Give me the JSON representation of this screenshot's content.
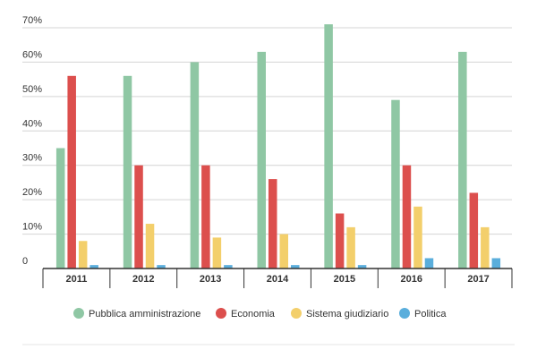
{
  "chart_data": {
    "type": "bar",
    "title": "",
    "xlabel": "",
    "ylabel": "",
    "categories": [
      "2011",
      "2012",
      "2013",
      "2014",
      "2015",
      "2016",
      "2017"
    ],
    "series": [
      {
        "name": "Pubblica amministrazione",
        "color": "#8fc7a4",
        "values": [
          35,
          56,
          60,
          63,
          71,
          49,
          63
        ]
      },
      {
        "name": "Economia",
        "color": "#dc4f4d",
        "values": [
          56,
          30,
          30,
          26,
          16,
          30,
          22
        ]
      },
      {
        "name": "Sistema giudiziario",
        "color": "#f3cf6b",
        "values": [
          8,
          13,
          9,
          10,
          12,
          18,
          12
        ]
      },
      {
        "name": "Politica",
        "color": "#5aaedc",
        "values": [
          1,
          1,
          1,
          1,
          1,
          3,
          3
        ]
      }
    ],
    "yticks": [
      {
        "value": 0,
        "label": "0"
      },
      {
        "value": 10,
        "label": "10%"
      },
      {
        "value": 20,
        "label": "20%"
      },
      {
        "value": 30,
        "label": "30%"
      },
      {
        "value": 40,
        "label": "40%"
      },
      {
        "value": 50,
        "label": "50%"
      },
      {
        "value": 60,
        "label": "60%"
      },
      {
        "value": 70,
        "label": "70%"
      }
    ],
    "ylim": [
      0,
      70
    ],
    "grid": true,
    "legend_position": "bottom"
  }
}
